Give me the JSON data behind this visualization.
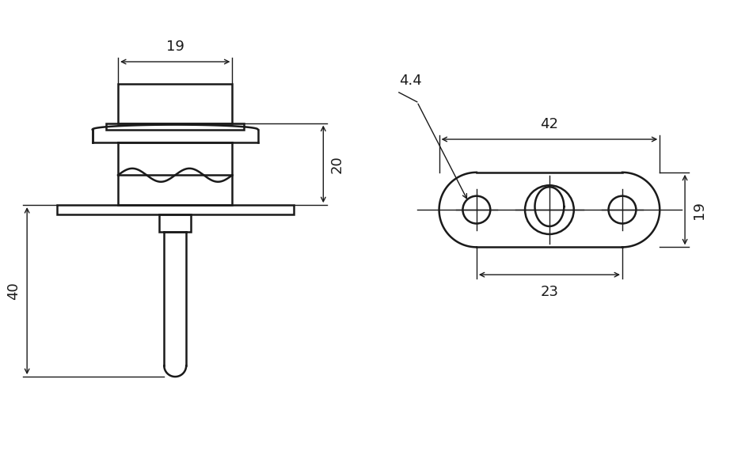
{
  "bg_color": "#ffffff",
  "line_color": "#1a1a1a",
  "lw": 1.8,
  "lw_thin": 1.0,
  "fig_width": 9.46,
  "fig_height": 5.7,
  "dim_19_text": "19",
  "dim_20_text": "20",
  "dim_40_text": "40",
  "dim_42_text": "42",
  "dim_23_text": "23",
  "dim_19r_text": "19",
  "dim_44_text": "4.4"
}
